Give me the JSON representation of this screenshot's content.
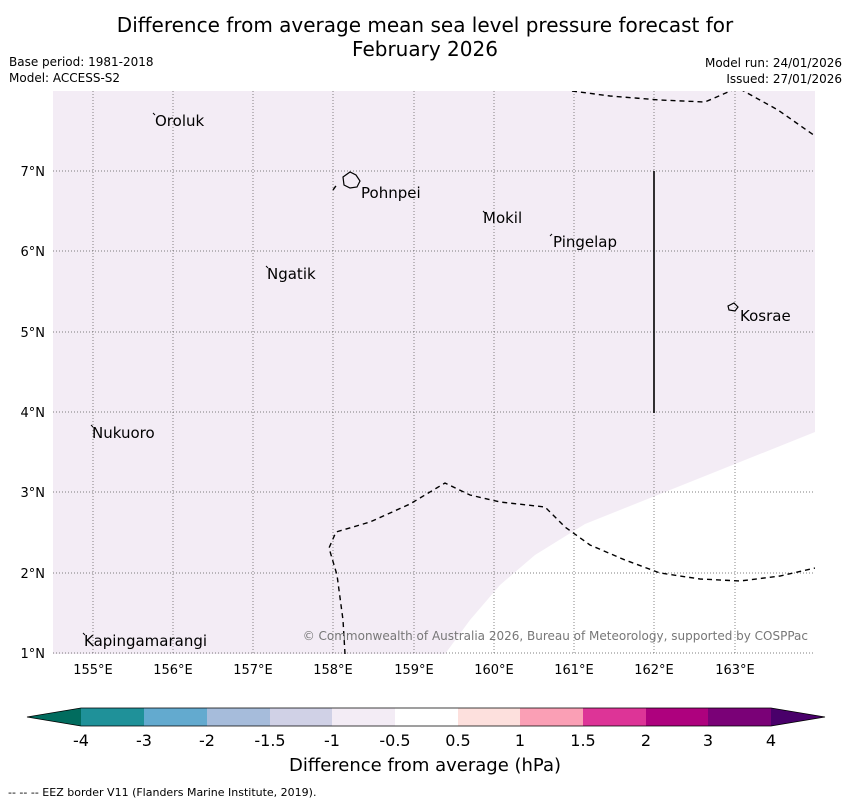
{
  "header": {
    "title_line1": "Difference from average mean sea level pressure forecast for",
    "title_line2": "February 2026",
    "base_period": "Base period: 1981-2018",
    "model": "Model: ACCESS-S2",
    "model_run": "Model run: 24/01/2026",
    "issued": "Issued: 27/01/2026"
  },
  "map": {
    "lat_labels": [
      "7°N",
      "6°N",
      "5°N",
      "4°N",
      "3°N",
      "2°N",
      "1°N"
    ],
    "lon_labels": [
      "155°E",
      "156°E",
      "157°E",
      "158°E",
      "159°E",
      "160°E",
      "161°E",
      "162°E",
      "163°E"
    ],
    "places": [
      "Oroluk",
      "Pohnpei",
      "Mokil",
      "Pingelap",
      "Ngatik",
      "Kosrae",
      "Nukuoro",
      "Kapingamarangi"
    ],
    "copyright": "© Commonwealth of Australia 2026, Bureau of Meteorology, supported by COSPPac",
    "shading_colors": {
      "light_negative": "#f3ecf5",
      "near_zero": "#ffffff"
    }
  },
  "colorbar": {
    "labels": [
      "-4",
      "-3",
      "-2",
      "-1.5",
      "-1",
      "-0.5",
      "0.5",
      "1",
      "1.5",
      "2",
      "3",
      "4"
    ],
    "colors": [
      "#016c5e",
      "#1f9199",
      "#63aacf",
      "#a6bcdb",
      "#d0d1e6",
      "#f3ecf5",
      "#ffffff",
      "#fde0dd",
      "#fa9fb5",
      "#dd3497",
      "#ae017e",
      "#7a0177",
      "#49006a"
    ],
    "title": "Difference from average (hPa)"
  },
  "footer": {
    "eez_note": "--  --  -- EEZ border V11 (Flanders Marine Institute, 2019)."
  }
}
